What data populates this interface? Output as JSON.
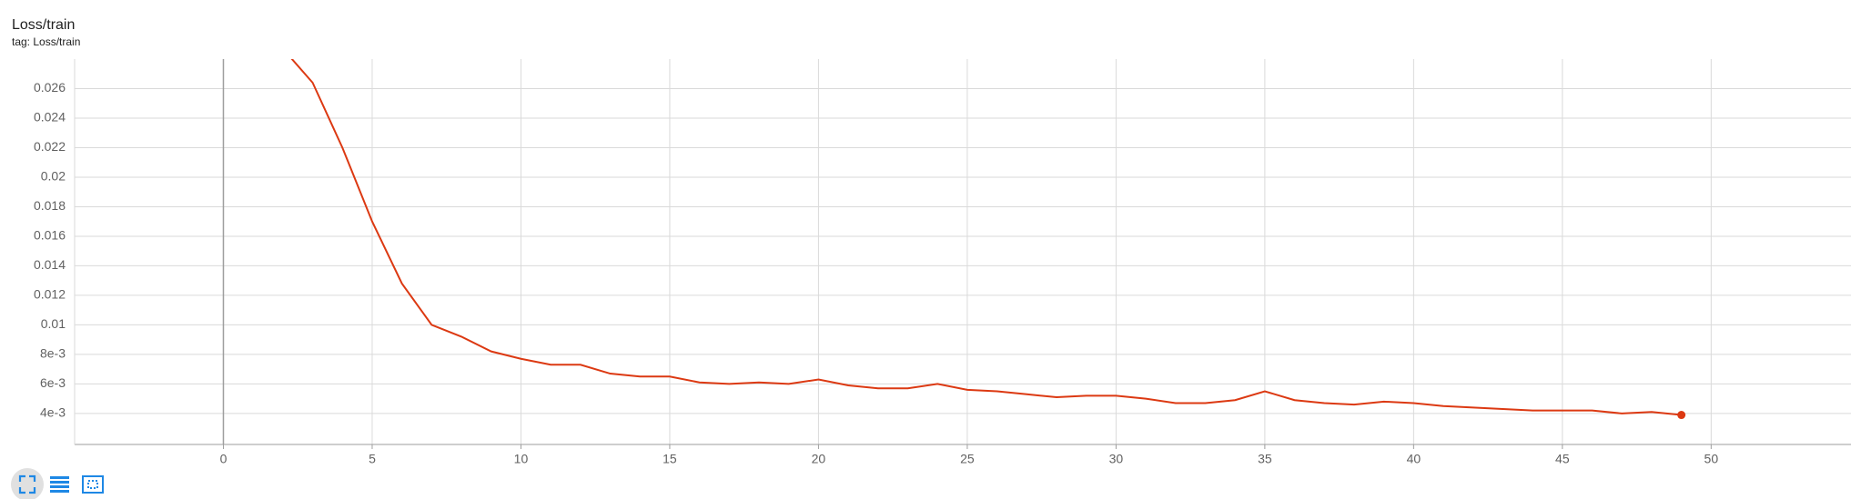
{
  "chart_data": {
    "type": "line",
    "title": "Loss/train",
    "subtitle": "tag: Loss/train",
    "x": [
      2,
      3,
      4,
      5,
      6,
      7,
      8,
      9,
      10,
      11,
      12,
      13,
      14,
      15,
      16,
      17,
      18,
      19,
      20,
      21,
      22,
      23,
      24,
      25,
      26,
      27,
      28,
      29,
      30,
      31,
      32,
      33,
      34,
      35,
      36,
      37,
      38,
      39,
      40,
      41,
      42,
      43,
      44,
      45,
      46,
      47,
      48,
      49
    ],
    "series": [
      {
        "color": "#dc3912",
        "values": [
          0.0287,
          0.0264,
          0.022,
          0.017,
          0.0128,
          0.01,
          0.0092,
          0.0082,
          0.0077,
          0.0073,
          0.0073,
          0.0067,
          0.0065,
          0.0065,
          0.0061,
          0.006,
          0.0061,
          0.006,
          0.0063,
          0.0059,
          0.0057,
          0.0057,
          0.006,
          0.0056,
          0.0055,
          0.0053,
          0.0051,
          0.0052,
          0.0052,
          0.005,
          0.0047,
          0.0047,
          0.0049,
          0.0055,
          0.0049,
          0.0047,
          0.0046,
          0.0048,
          0.0047,
          0.0045,
          0.0044,
          0.0043,
          0.0042,
          0.0042,
          0.0042,
          0.004,
          0.0041,
          0.0039
        ]
      }
    ],
    "xlim": [
      -5,
      54.7
    ],
    "ylim": [
      0.0019,
      0.028
    ],
    "xticks": [
      0,
      5,
      10,
      15,
      20,
      25,
      30,
      35,
      40,
      45,
      50
    ],
    "yticks": [
      {
        "value": 0.004,
        "label": "4e-3"
      },
      {
        "value": 0.006,
        "label": "6e-3"
      },
      {
        "value": 0.008,
        "label": "8e-3"
      },
      0.01,
      0.012,
      0.014,
      0.016,
      0.018,
      0.02,
      0.022,
      0.024,
      0.026
    ],
    "grid": true
  }
}
